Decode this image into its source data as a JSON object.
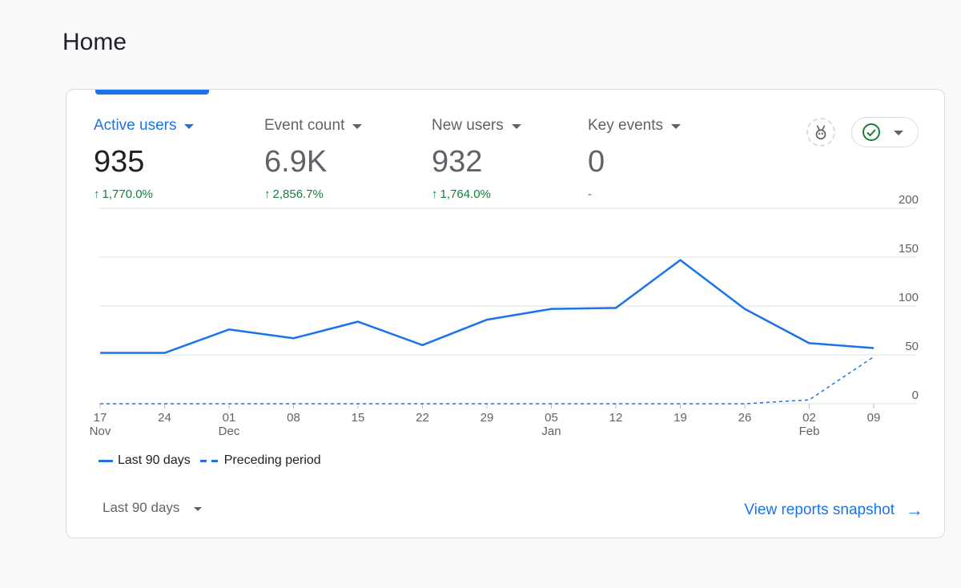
{
  "page": {
    "title": "Home"
  },
  "metrics": [
    {
      "label": "Active users",
      "value": "935",
      "change": "1,770.0%",
      "direction": "up",
      "active": true
    },
    {
      "label": "Event count",
      "value": "6.9K",
      "change": "2,856.7%",
      "direction": "up",
      "active": false
    },
    {
      "label": "New users",
      "value": "932",
      "change": "1,764.0%",
      "direction": "up",
      "active": false
    },
    {
      "label": "Key events",
      "value": "0",
      "change": "-",
      "direction": "none",
      "active": false
    }
  ],
  "toolbar": {
    "badge_icon": "insights-badge-icon",
    "status_icon": "check-circle-icon",
    "status_color": "#188038"
  },
  "colors": {
    "accent": "#1a73e8",
    "positive": "#188038",
    "muted": "#5f6368"
  },
  "legend": {
    "current": "Last 90 days",
    "previous": "Preceding period"
  },
  "footer": {
    "date_range": "Last 90 days",
    "snapshot_link": "View reports snapshot"
  },
  "chart_data": {
    "type": "line",
    "x": [
      "17 Nov",
      "24 Nov",
      "01 Dec",
      "08 Dec",
      "15 Dec",
      "22 Dec",
      "29 Dec",
      "05 Jan",
      "12 Jan",
      "19 Jan",
      "26 Jan",
      "02 Feb",
      "09 Feb"
    ],
    "tick_labels": [
      {
        "day": "17",
        "month": "Nov"
      },
      {
        "day": "24",
        "month": ""
      },
      {
        "day": "01",
        "month": "Dec"
      },
      {
        "day": "08",
        "month": ""
      },
      {
        "day": "15",
        "month": ""
      },
      {
        "day": "22",
        "month": ""
      },
      {
        "day": "29",
        "month": ""
      },
      {
        "day": "05",
        "month": "Jan"
      },
      {
        "day": "12",
        "month": ""
      },
      {
        "day": "19",
        "month": ""
      },
      {
        "day": "26",
        "month": ""
      },
      {
        "day": "02",
        "month": "Feb"
      },
      {
        "day": "09",
        "month": ""
      }
    ],
    "series": [
      {
        "name": "Last 90 days",
        "style": "solid",
        "values": [
          52,
          52,
          76,
          67,
          84,
          60,
          86,
          97,
          98,
          147,
          97,
          62,
          57
        ]
      },
      {
        "name": "Preceding period",
        "style": "dashed",
        "values": [
          0,
          0,
          0,
          0,
          0,
          0,
          0,
          0,
          0,
          0,
          0,
          4,
          48
        ]
      }
    ],
    "yticks": [
      0,
      50,
      100,
      150,
      200
    ],
    "ylim": [
      0,
      200
    ],
    "ylabel_position": "right",
    "grid": true,
    "legend_position": "bottom-left"
  }
}
